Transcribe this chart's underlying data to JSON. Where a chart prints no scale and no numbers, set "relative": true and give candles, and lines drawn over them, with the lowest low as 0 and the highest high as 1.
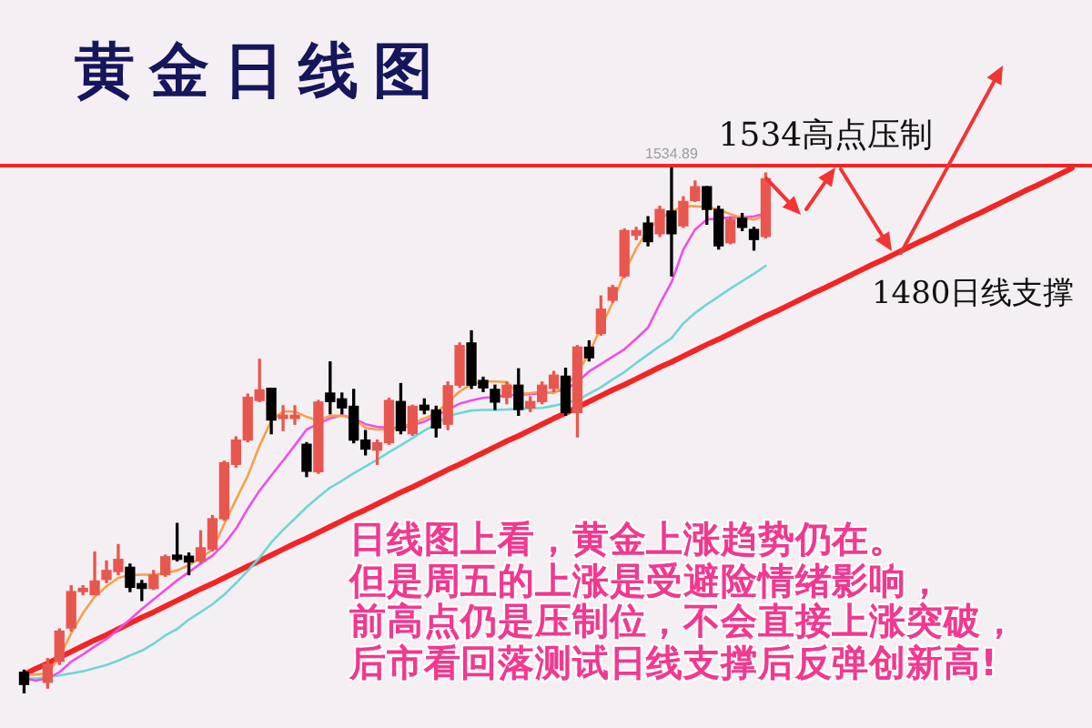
{
  "chart_data": {
    "type": "candlestick",
    "title": "黄金日线图",
    "relative": true,
    "tick_labels": false,
    "categories": [
      null,
      null,
      null,
      null,
      null,
      null,
      null,
      null,
      null,
      null,
      null,
      null,
      null,
      null,
      null,
      null,
      null,
      null,
      null,
      null,
      null,
      null,
      null,
      null,
      null,
      null,
      null,
      null,
      null,
      null,
      null,
      null,
      null,
      null,
      null,
      null,
      null,
      null,
      null,
      null,
      null,
      null,
      null,
      null,
      null,
      null,
      null,
      null,
      null,
      null,
      null,
      null,
      null,
      null,
      null,
      null,
      null,
      null,
      null,
      null,
      null,
      null,
      null,
      null,
      null,
      null,
      null,
      null,
      null,
      null,
      null,
      null,
      null,
      null,
      null,
      null,
      null,
      null,
      null,
      null,
      null,
      null,
      null,
      null,
      null,
      null,
      null,
      null,
      null,
      null,
      null
    ],
    "ohlc": [
      [
        0.04,
        0.044,
        0,
        0.017
      ],
      null,
      [
        0.021,
        0.066,
        0.01,
        0.055
      ],
      [
        0.061,
        0.122,
        0.055,
        0.118
      ],
      [
        0.124,
        0.204,
        0.118,
        0.193
      ],
      [
        0.193,
        0.204,
        0.187,
        0.199
      ],
      [
        0.187,
        0.268,
        0.187,
        0.213
      ],
      [
        0.216,
        0.251,
        0.21,
        0.233
      ],
      [
        0.231,
        0.282,
        0.225,
        0.254
      ],
      [
        0.239,
        0.245,
        0.193,
        0.201
      ],
      [
        0.208,
        0.214,
        0.176,
        0.199
      ],
      [
        0.199,
        0.233,
        0.197,
        0.224
      ],
      [
        0.225,
        0.262,
        0.222,
        0.259
      ],
      [
        0.262,
        0.322,
        0.251,
        0.254
      ],
      [
        0.26,
        0.266,
        0.225,
        0.249
      ],
      [
        0.251,
        0.308,
        0.247,
        0.276
      ],
      [
        0.273,
        0.337,
        0.27,
        0.331
      ],
      [
        0.331,
        0.44,
        0.328,
        0.437
      ],
      [
        0.434,
        0.486,
        0.429,
        0.48
      ],
      [
        0.48,
        0.567,
        0.477,
        0.561
      ],
      [
        0.555,
        0.633,
        0.553,
        0.575
      ],
      [
        0.578,
        0.578,
        0.492,
        0.518
      ],
      [
        0.521,
        0.545,
        0.498,
        0.527
      ],
      [
        0.521,
        0.545,
        0.51,
        0.527
      ],
      [
        0.472,
        0.475,
        0.411,
        0.421
      ],
      [
        0.42,
        0.555,
        0.417,
        0.552
      ],
      [
        0.569,
        0.628,
        0.53,
        0.553
      ],
      [
        0.558,
        0.569,
        0.53,
        0.541
      ],
      [
        0.544,
        0.576,
        0.475,
        0.48
      ],
      [
        0.48,
        0.498,
        0.452,
        0.463
      ],
      [
        0.461,
        0.48,
        0.434,
        0.475
      ],
      [
        0.475,
        0.559,
        0.472,
        0.555
      ],
      [
        0.553,
        0.587,
        0.492,
        0.498
      ],
      [
        0.492,
        0.546,
        0.489,
        0.544
      ],
      [
        0.546,
        0.558,
        0.53,
        0.537
      ],
      [
        0.537,
        0.544,
        0.486,
        0.503
      ],
      [
        0.51,
        0.59,
        0.5,
        0.583
      ],
      [
        0.584,
        0.664,
        0.58,
        0.659
      ],
      [
        0.664,
        0.687,
        0.578,
        0.584
      ],
      [
        0.593,
        0.599,
        0.572,
        0.579
      ],
      [
        0.576,
        0.584,
        0.538,
        0.552
      ],
      [
        0.561,
        0.59,
        0.549,
        0.584
      ],
      [
        0.584,
        0.615,
        0.527,
        0.538
      ],
      [
        0.541,
        0.562,
        0.534,
        0.553
      ],
      [
        0.553,
        0.59,
        0.549,
        0.584
      ],
      [
        0.578,
        0.61,
        0.572,
        0.603
      ],
      [
        0.601,
        0.616,
        0.527,
        0.532
      ],
      [
        0.532,
        0.659,
        0.486,
        0.656
      ],
      [
        0.656,
        0.668,
        0.63,
        0.636
      ],
      [
        0.682,
        0.753,
        0.679,
        0.728
      ],
      [
        0.745,
        0.773,
        0.741,
        0.769
      ],
      [
        0.791,
        0.88,
        0.788,
        0.877
      ],
      [
        0.868,
        0.883,
        0.86,
        0.877
      ],
      [
        0.891,
        0.903,
        0.848,
        0.856
      ],
      [
        0.871,
        0.923,
        0.866,
        0.917
      ],
      [
        0.914,
        1,
        0.791,
        0.871
      ],
      [
        0.886,
        0.941,
        0.883,
        0.932
      ],
      [
        0.934,
        0.971,
        0.932,
        0.96
      ],
      [
        0.96,
        0.96,
        0.889,
        0.917
      ],
      [
        0.917,
        0.923,
        0.842,
        0.848
      ],
      [
        0.854,
        0.902,
        0.852,
        0.898
      ],
      [
        0.9,
        0.909,
        0.877,
        0.883
      ],
      [
        0.879,
        0.883,
        0.84,
        0.86
      ],
      [
        0.866,
        0.986,
        0.863,
        0.975
      ],
      null,
      null,
      null,
      null,
      null,
      null,
      null,
      null,
      null,
      null,
      null,
      null,
      null,
      null,
      null,
      null,
      null,
      null,
      null,
      null,
      null,
      null,
      null,
      null,
      null,
      null,
      null
    ],
    "colors": [
      "#000000",
      null,
      "#e8574f",
      "#e8574f",
      "#e8574f",
      "#e8574f",
      "#e8574f",
      "#e8574f",
      "#e8574f",
      "#000000",
      "#000000",
      "#e8574f",
      "#e8574f",
      "#000000",
      "#000000",
      "#e8574f",
      "#e8574f",
      "#e8574f",
      "#e8574f",
      "#e8574f",
      "#e8574f",
      "#000000",
      "#e8574f",
      "#e8574f",
      "#000000",
      "#e8574f",
      "#000000",
      "#000000",
      "#000000",
      "#000000",
      "#e8574f",
      "#e8574f",
      "#000000",
      "#e8574f",
      "#000000",
      "#000000",
      "#e8574f",
      "#e8574f",
      "#000000",
      "#000000",
      "#000000",
      "#e8574f",
      "#000000",
      "#e8574f",
      "#e8574f",
      "#e8574f",
      "#000000",
      "#e8574f",
      "#000000",
      "#e8574f",
      "#e8574f",
      "#e8574f",
      "#e8574f",
      "#000000",
      "#e8574f",
      "#000000",
      "#e8574f",
      "#e8574f",
      "#000000",
      "#000000",
      "#e8574f",
      "#000000",
      "#000000",
      "#e8574f",
      null,
      null,
      null,
      null,
      null,
      null,
      null,
      null,
      null,
      null,
      null,
      null,
      null,
      null,
      null,
      null,
      null,
      null,
      null,
      null,
      null,
      null,
      null,
      null,
      null,
      null,
      null
    ],
    "series": [
      {
        "type": "line",
        "color": "#f5a04b",
        "values": [
          0.034,
          0.036,
          0.038,
          0.069,
          0.114,
          0.152,
          0.183,
          0.203,
          0.219,
          0.224,
          0.225,
          0.225,
          0.228,
          0.233,
          0.243,
          0.257,
          0.272,
          0.321,
          0.367,
          0.412,
          0.469,
          0.517,
          0.534,
          0.534,
          0.524,
          0.517,
          0.526,
          0.526,
          0.521,
          0.503,
          0.5,
          0.5,
          0.503,
          0.512,
          0.521,
          0.531,
          0.552,
          0.572,
          0.586,
          0.591,
          0.591,
          0.59,
          0.567,
          0.569,
          0.572,
          0.569,
          0.583,
          0.607,
          0.645,
          0.693,
          0.741,
          0.797,
          0.843,
          0.879,
          0.899,
          0.913,
          0.923,
          0.923,
          0.921,
          0.917,
          0.908,
          0.901,
          0.898,
          0.905,
          null,
          null,
          null,
          null,
          null,
          null,
          null,
          null,
          null,
          null,
          null,
          null,
          null,
          null,
          null,
          null,
          null,
          null,
          null,
          null,
          null,
          null,
          null,
          null,
          null,
          null,
          null
        ]
      },
      {
        "type": "line",
        "color": "#ef4fe6",
        "values": [
          0.029,
          0.024,
          0.029,
          0.04,
          0.06,
          0.074,
          0.089,
          0.103,
          0.121,
          0.14,
          0.16,
          0.178,
          0.196,
          0.214,
          0.23,
          0.246,
          0.261,
          0.283,
          0.312,
          0.35,
          0.384,
          0.413,
          0.441,
          0.47,
          0.5,
          0.511,
          0.521,
          0.527,
          0.521,
          0.51,
          0.505,
          0.503,
          0.503,
          0.508,
          0.515,
          0.526,
          0.538,
          0.549,
          0.555,
          0.56,
          0.562,
          0.565,
          0.566,
          0.567,
          0.569,
          0.571,
          0.576,
          0.59,
          0.61,
          0.624,
          0.638,
          0.652,
          0.672,
          0.693,
          0.738,
          0.779,
          0.841,
          0.879,
          0.898,
          0.9,
          0.902,
          0.902,
          0.904,
          0.909,
          null,
          null,
          null,
          null,
          null,
          null,
          null,
          null,
          null,
          null,
          null,
          null,
          null,
          null,
          null,
          null,
          null,
          null,
          null,
          null,
          null,
          null,
          null,
          null,
          null,
          null,
          null
        ]
      },
      {
        "type": "line",
        "color": "#6fd6d6",
        "values": [
          0.029,
          0.028,
          0.031,
          0.034,
          0.038,
          0.042,
          0.048,
          0.054,
          0.062,
          0.072,
          0.081,
          0.094,
          0.11,
          0.122,
          0.14,
          0.154,
          0.169,
          0.187,
          0.209,
          0.232,
          0.257,
          0.286,
          0.31,
          0.331,
          0.353,
          0.372,
          0.39,
          0.403,
          0.417,
          0.43,
          0.443,
          0.457,
          0.47,
          0.484,
          0.498,
          0.51,
          0.526,
          0.531,
          0.536,
          0.537,
          0.537,
          0.538,
          0.539,
          0.54,
          0.541,
          0.545,
          0.55,
          0.556,
          0.568,
          0.58,
          0.595,
          0.609,
          0.626,
          0.642,
          0.658,
          0.673,
          0.701,
          0.721,
          0.737,
          0.752,
          0.767,
          0.781,
          0.795,
          0.81,
          null,
          null,
          null,
          null,
          null,
          null,
          null,
          null,
          null,
          null,
          null,
          null,
          null,
          null,
          null,
          null,
          null,
          null,
          null,
          null,
          null,
          null,
          null,
          null,
          null,
          null,
          null
        ]
      },
      {
        "type": "line",
        "name": "1480日线支撑",
        "color": "#f42424",
        "values": [
          0.036,
          0.047,
          0.057,
          0.068,
          0.079,
          0.09,
          0.101,
          0.111,
          0.122,
          0.133,
          0.144,
          0.154,
          0.165,
          0.176,
          0.187,
          0.198,
          0.208,
          0.219,
          0.23,
          0.241,
          0.251,
          0.262,
          0.273,
          0.284,
          0.294,
          0.305,
          0.316,
          0.327,
          0.338,
          0.348,
          0.359,
          0.37,
          0.381,
          0.391,
          0.402,
          0.413,
          0.424,
          0.434,
          0.445,
          0.456,
          0.467,
          0.478,
          0.488,
          0.499,
          0.51,
          0.521,
          0.531,
          0.542,
          0.553,
          0.564,
          0.575,
          0.585,
          0.596,
          0.607,
          0.618,
          0.628,
          0.639,
          0.65,
          0.661,
          0.671,
          0.682,
          0.693,
          0.704,
          0.715,
          0.725,
          0.736,
          0.747,
          0.758,
          0.768,
          0.779,
          0.79,
          0.801,
          0.812,
          0.822,
          0.833,
          0.844,
          0.855,
          0.865,
          0.876,
          0.887,
          0.898,
          0.908,
          0.919,
          0.93,
          0.941,
          0.952,
          0.962,
          0.973,
          0.984,
          0.995,
          null
        ]
      }
    ],
    "ref_lines": [
      {
        "axis": "y",
        "value": 1,
        "label": "1534高点压制",
        "color": "#f42424"
      }
    ],
    "annotations": [
      {
        "text": "1534.89",
        "y": 1
      },
      "日线图上看，黄金上涨趋势仍在。",
      "但是周五的上涨是受避险情绪影响，",
      "前高点仍是压制位，不会直接上涨突破，",
      "后市看回落测试日线支撑后反弹创新高!"
    ]
  }
}
